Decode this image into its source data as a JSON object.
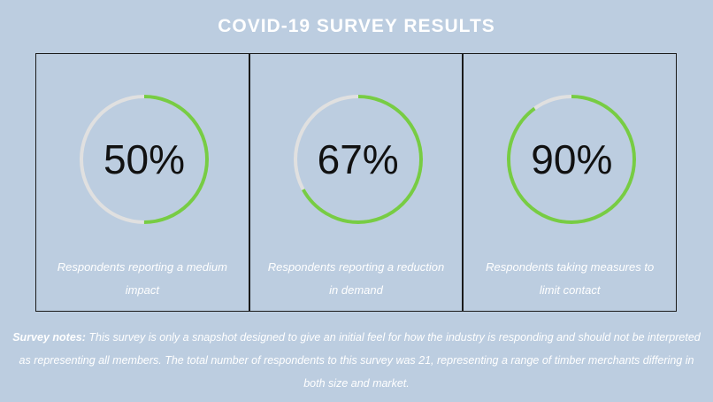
{
  "title": "COVID-19 SURVEY RESULTS",
  "colors": {
    "background": "#bccde0",
    "track": "#e0e0e0",
    "progress": "#77cc44",
    "text": "#ffffff"
  },
  "chart_data": [
    {
      "type": "gauge",
      "value": 50,
      "max": 100,
      "value_label": "50%",
      "caption": "Respondents reporting a medium impact"
    },
    {
      "type": "gauge",
      "value": 67,
      "max": 100,
      "value_label": "67%",
      "caption": "Respondents reporting a reduction in demand"
    },
    {
      "type": "gauge",
      "value": 90,
      "max": 100,
      "value_label": "90%",
      "caption": "Respondents taking measures to limit contact"
    }
  ],
  "notes": {
    "label": "Survey notes:",
    "text": " This survey is only a snapshot designed to give an initial feel for how the industry is responding and should not be interpreted as representing all members. The total number of respondents to this survey was 21, representing a range of timber merchants differing in both size and market."
  }
}
